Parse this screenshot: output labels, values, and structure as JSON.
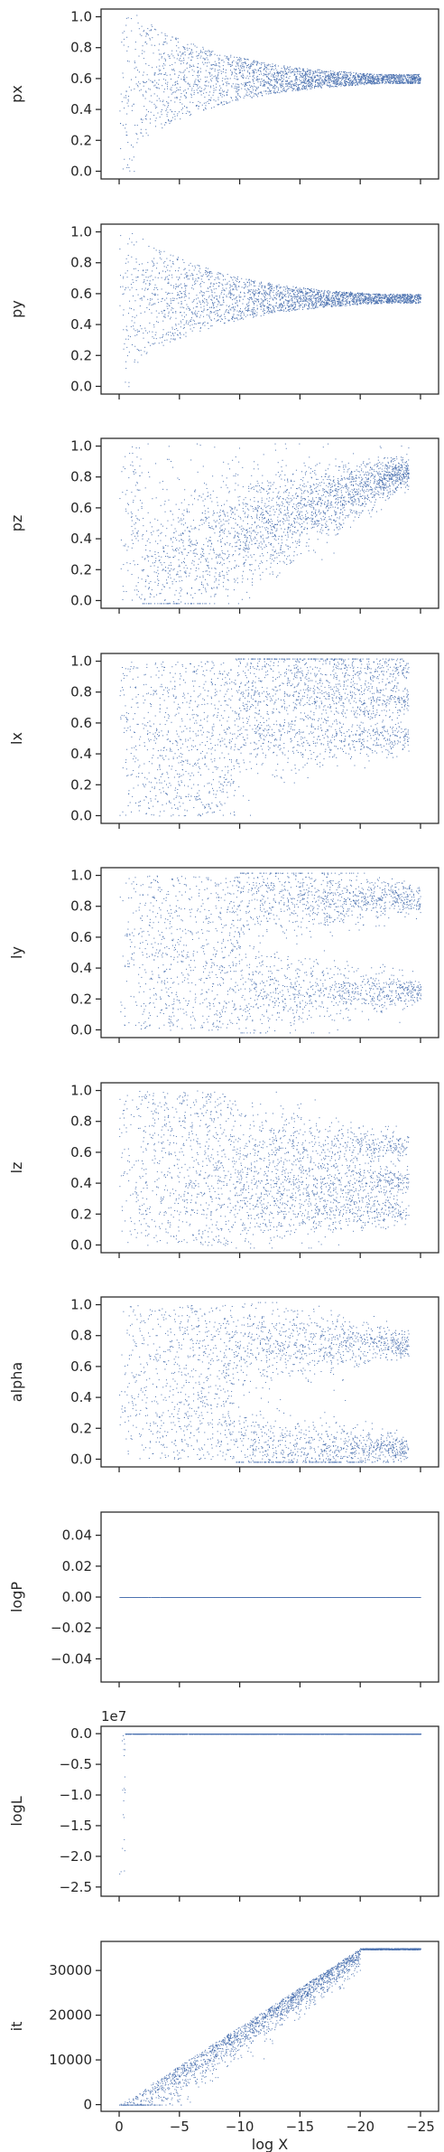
{
  "colors": {
    "points": "#4c72b0",
    "axes": "#262626",
    "background": "#ffffff"
  },
  "chart_data": [
    {
      "type": "scatter",
      "ylabel": "px",
      "xlim": [
        1.5,
        -26.5
      ],
      "ylim": [
        -0.05,
        1.05
      ],
      "yticks": [
        0.0,
        0.2,
        0.4,
        0.6,
        0.8,
        1.0
      ],
      "yticklabels": [
        "0.0",
        "0.2",
        "0.4",
        "0.6",
        "0.8",
        "1.0"
      ],
      "xticks": [
        0,
        -5,
        -10,
        -15,
        -20,
        -25
      ],
      "xticklabels": [],
      "offset": "",
      "shape": "converge",
      "converge_to": 0.6,
      "x_extent": [
        0,
        -25
      ]
    },
    {
      "type": "scatter",
      "ylabel": "py",
      "xlim": [
        1.5,
        -26.5
      ],
      "ylim": [
        -0.05,
        1.05
      ],
      "yticks": [
        0.0,
        0.2,
        0.4,
        0.6,
        0.8,
        1.0
      ],
      "yticklabels": [
        "0.0",
        "0.2",
        "0.4",
        "0.6",
        "0.8",
        "1.0"
      ],
      "xticks": [
        0,
        -5,
        -10,
        -15,
        -20,
        -25
      ],
      "xticklabels": [],
      "offset": "",
      "shape": "converge",
      "converge_to": 0.57,
      "x_extent": [
        0,
        -25
      ]
    },
    {
      "type": "scatter",
      "ylabel": "pz",
      "xlim": [
        1.5,
        -26.5
      ],
      "ylim": [
        -0.05,
        1.05
      ],
      "yticks": [
        0.0,
        0.2,
        0.4,
        0.6,
        0.8,
        1.0
      ],
      "yticklabels": [
        "0.0",
        "0.2",
        "0.4",
        "0.6",
        "0.8",
        "1.0"
      ],
      "xticks": [
        0,
        -5,
        -10,
        -15,
        -20,
        -25
      ],
      "xticklabels": [],
      "offset": "",
      "shape": "rising",
      "converge_to": 0.85,
      "x_extent": [
        0,
        -24
      ]
    },
    {
      "type": "scatter",
      "ylabel": "lx",
      "xlim": [
        1.5,
        -26.5
      ],
      "ylim": [
        -0.05,
        1.05
      ],
      "yticks": [
        0.0,
        0.2,
        0.4,
        0.6,
        0.8,
        1.0
      ],
      "yticklabels": [
        "0.0",
        "0.2",
        "0.4",
        "0.6",
        "0.8",
        "1.0"
      ],
      "xticks": [
        0,
        -5,
        -10,
        -15,
        -20,
        -25
      ],
      "xticklabels": [],
      "offset": "",
      "shape": "bands",
      "bands": [
        0.95,
        0.75,
        0.5
      ],
      "x_extent": [
        0,
        -24
      ]
    },
    {
      "type": "scatter",
      "ylabel": "ly",
      "xlim": [
        1.5,
        -26.5
      ],
      "ylim": [
        -0.05,
        1.05
      ],
      "yticks": [
        0.0,
        0.2,
        0.4,
        0.6,
        0.8,
        1.0
      ],
      "yticklabels": [
        "0.0",
        "0.2",
        "0.4",
        "0.6",
        "0.8",
        "1.0"
      ],
      "xticks": [
        0,
        -5,
        -10,
        -15,
        -20,
        -25
      ],
      "xticklabels": [],
      "offset": "",
      "shape": "bands",
      "bands": [
        0.85,
        0.25
      ],
      "x_extent": [
        0,
        -25
      ]
    },
    {
      "type": "scatter",
      "ylabel": "lz",
      "xlim": [
        1.5,
        -26.5
      ],
      "ylim": [
        -0.05,
        1.05
      ],
      "yticks": [
        0.0,
        0.2,
        0.4,
        0.6,
        0.8,
        1.0
      ],
      "yticklabels": [
        "0.0",
        "0.2",
        "0.4",
        "0.6",
        "0.8",
        "1.0"
      ],
      "xticks": [
        0,
        -5,
        -10,
        -15,
        -20,
        -25
      ],
      "xticklabels": [],
      "offset": "",
      "shape": "bands",
      "bands": [
        0.65,
        0.42,
        0.22
      ],
      "x_extent": [
        0,
        -24
      ]
    },
    {
      "type": "scatter",
      "ylabel": "alpha",
      "xlim": [
        1.5,
        -26.5
      ],
      "ylim": [
        -0.05,
        1.05
      ],
      "yticks": [
        0.0,
        0.2,
        0.4,
        0.6,
        0.8,
        1.0
      ],
      "yticklabels": [
        "0.0",
        "0.2",
        "0.4",
        "0.6",
        "0.8",
        "1.0"
      ],
      "xticks": [
        0,
        -5,
        -10,
        -15,
        -20,
        -25
      ],
      "xticklabels": [],
      "offset": "",
      "shape": "bands",
      "bands": [
        0.75,
        0.07
      ],
      "x_extent": [
        0,
        -24
      ]
    },
    {
      "type": "scatter",
      "ylabel": "logP",
      "xlim": [
        1.5,
        -26.5
      ],
      "ylim": [
        -0.055,
        0.055
      ],
      "yticks": [
        -0.04,
        -0.02,
        0.0,
        0.02,
        0.04
      ],
      "yticklabels": [
        "−0.04",
        "−0.02",
        "0.00",
        "0.02",
        "0.04"
      ],
      "xticks": [
        0,
        -5,
        -10,
        -15,
        -20,
        -25
      ],
      "xticklabels": [],
      "offset": "",
      "shape": "flat",
      "converge_to": 0.0,
      "x_extent": [
        0,
        -25
      ]
    },
    {
      "type": "scatter",
      "ylabel": "logL",
      "xlim": [
        1.5,
        -26.5
      ],
      "ylim": [
        -2.65,
        0.12
      ],
      "yticks": [
        0.0,
        -0.5,
        -1.0,
        -1.5,
        -2.0,
        -2.5
      ],
      "yticklabels": [
        "0.0",
        "−0.5",
        "−1.0",
        "−1.5",
        "−2.0",
        "−2.5"
      ],
      "xticks": [
        0,
        -5,
        -10,
        -15,
        -20,
        -25
      ],
      "xticklabels": [],
      "offset": "1e7",
      "shape": "logl",
      "converge_to": 0.0,
      "x_extent": [
        0,
        -25
      ]
    },
    {
      "type": "scatter",
      "ylabel": "it",
      "xlabel": "log X",
      "xlim": [
        1.5,
        -26.5
      ],
      "ylim": [
        -1500,
        36500
      ],
      "yticks": [
        0,
        10000,
        20000,
        30000
      ],
      "yticklabels": [
        "0",
        "10000",
        "20000",
        "30000"
      ],
      "xticks": [
        0,
        -5,
        -10,
        -15,
        -20,
        -25
      ],
      "xticklabels": [
        "0",
        "−5",
        "−10",
        "−15",
        "−20",
        "−25"
      ],
      "offset": "",
      "shape": "iter",
      "max_it": 35000,
      "x_extent": [
        0,
        -25
      ]
    }
  ]
}
